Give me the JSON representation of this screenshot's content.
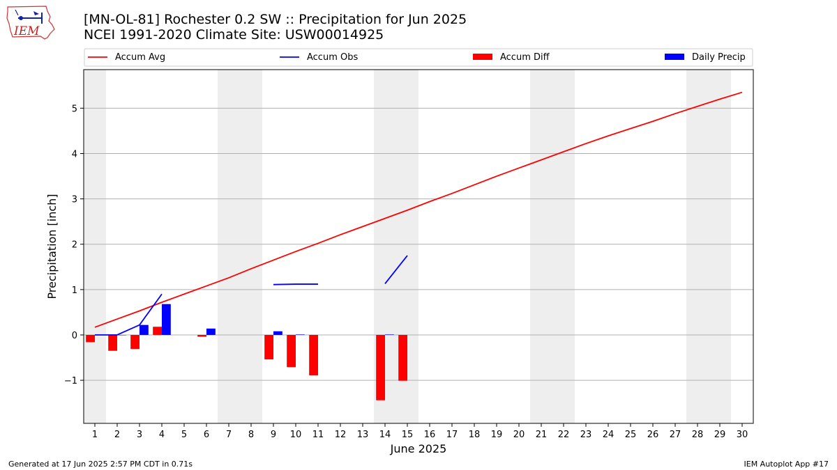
{
  "header": {
    "logo_text": "IEM",
    "title_line1": "[MN-OL-81] Rochester 0.2 SW :: Precipitation for Jun 2025",
    "title_line2": "NCEI 1991-2020 Climate Site: USW00014925"
  },
  "footer": {
    "generated": "Generated at 17 Jun 2025 2:57 PM CDT in 0.71s",
    "app": "IEM Autoplot App #17"
  },
  "colors": {
    "accum_avg": "#ff0000",
    "accum_obs": "#0000ff",
    "accum_diff": "#ff0000",
    "daily_precip": "#0000ff",
    "weekend_shade": "#eeeeee",
    "grid": "#b0b0b0"
  },
  "chart_data": {
    "type": "bar",
    "xlabel": "June 2025",
    "ylabel": "Precipitation [inch]",
    "xlim": [
      0.5,
      30.5
    ],
    "ylim": [
      -1.95,
      5.85
    ],
    "yticks": [
      -1,
      0,
      1,
      2,
      3,
      4,
      5
    ],
    "ytick_labels": [
      "−1",
      "0",
      "1",
      "2",
      "3",
      "4",
      "5"
    ],
    "days": [
      1,
      2,
      3,
      4,
      5,
      6,
      7,
      8,
      9,
      10,
      11,
      12,
      13,
      14,
      15,
      16,
      17,
      18,
      19,
      20,
      21,
      22,
      23,
      24,
      25,
      26,
      27,
      28,
      29,
      30
    ],
    "grid": "horizontal",
    "legend_position": "top",
    "shaded_weekends": [
      [
        0.5,
        1.5
      ],
      [
        6.5,
        8.5
      ],
      [
        13.5,
        15.5
      ],
      [
        20.5,
        22.5
      ],
      [
        27.5,
        29.5
      ]
    ],
    "series": [
      {
        "name": "Accum Avg",
        "kind": "line",
        "color": "#ff0000",
        "x": [
          1,
          2,
          3,
          4,
          5,
          6,
          7,
          8,
          9,
          10,
          11,
          12,
          13,
          14,
          15,
          16,
          17,
          18,
          19,
          20,
          21,
          22,
          23,
          24,
          25,
          26,
          27,
          28,
          29,
          30
        ],
        "values": [
          0.17,
          0.35,
          0.53,
          0.72,
          0.9,
          1.08,
          1.26,
          1.46,
          1.65,
          1.84,
          2.02,
          2.21,
          2.39,
          2.57,
          2.75,
          2.94,
          3.12,
          3.31,
          3.5,
          3.68,
          3.86,
          4.04,
          4.22,
          4.39,
          4.55,
          4.71,
          4.88,
          5.04,
          5.2,
          5.35
        ]
      },
      {
        "name": "Accum Obs",
        "kind": "line",
        "color": "#0000ff",
        "x": [
          1,
          2,
          3,
          4,
          5,
          6,
          7,
          8,
          9,
          10,
          11,
          12,
          13,
          14,
          15
        ],
        "values": [
          0.0,
          0.0,
          0.22,
          0.9,
          null,
          null,
          null,
          null,
          1.11,
          1.12,
          1.12,
          null,
          null,
          1.13,
          1.75
        ]
      },
      {
        "name": "Accum Diff",
        "kind": "bar",
        "color": "#ff0000",
        "x": [
          1,
          2,
          3,
          4,
          6,
          9,
          10,
          11,
          14,
          15
        ],
        "values": [
          -0.16,
          -0.35,
          -0.31,
          0.18,
          -0.04,
          -0.54,
          -0.71,
          -0.89,
          -1.44,
          -1.01
        ]
      },
      {
        "name": "Daily Precip",
        "kind": "bar",
        "color": "#0000ff",
        "x": [
          1,
          2,
          3,
          4,
          6,
          9,
          10,
          14
        ],
        "values": [
          0.0,
          0.0,
          0.22,
          0.68,
          0.14,
          0.08,
          0.01,
          0.01
        ]
      }
    ]
  }
}
